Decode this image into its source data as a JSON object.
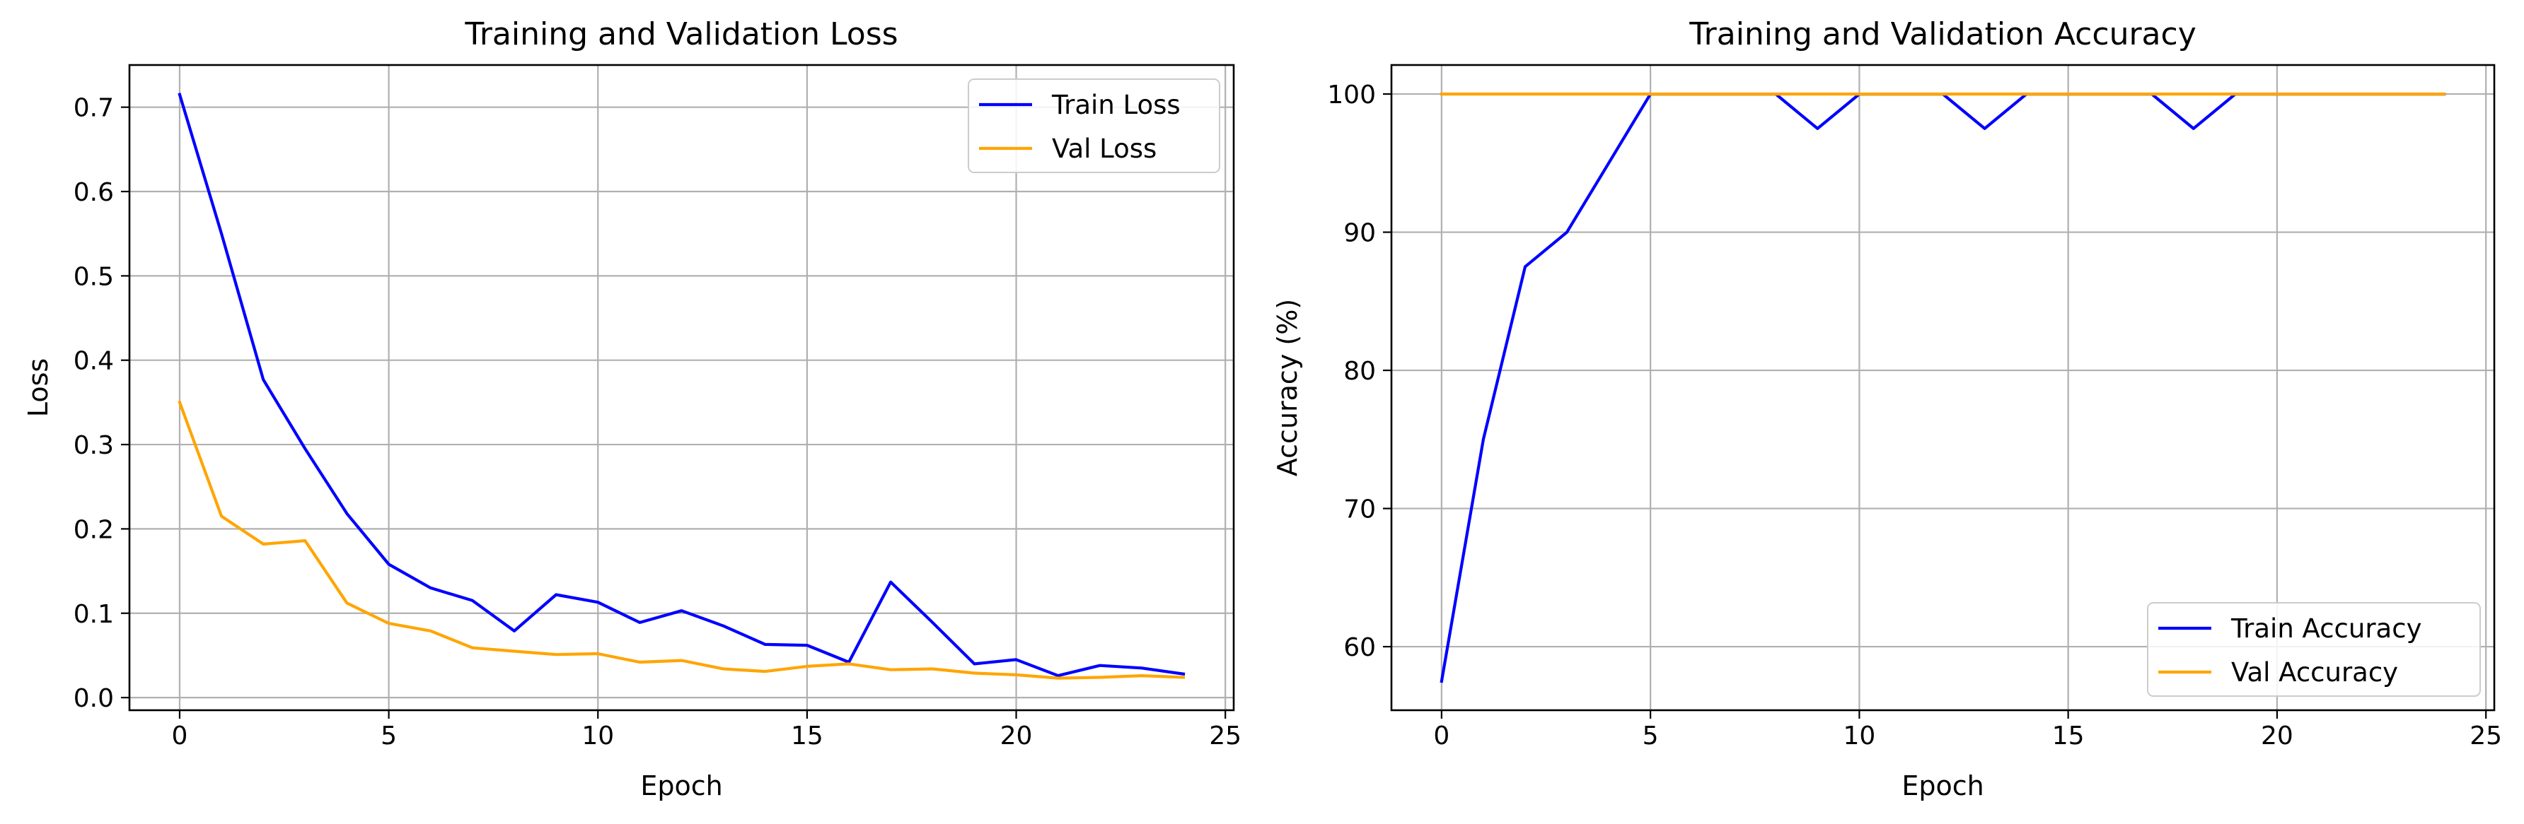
{
  "chart_data": [
    {
      "type": "line",
      "title": "Training and Validation Loss",
      "xlabel": "Epoch",
      "ylabel": "Loss",
      "xlim": [
        -1.2,
        25.2
      ],
      "ylim": [
        -0.015,
        0.75
      ],
      "xticks": [
        0,
        5,
        10,
        15,
        20,
        25
      ],
      "yticks": [
        0.0,
        0.1,
        0.2,
        0.3,
        0.4,
        0.5,
        0.6,
        0.7
      ],
      "ytick_labels": [
        "0.0",
        "0.1",
        "0.2",
        "0.3",
        "0.4",
        "0.5",
        "0.6",
        "0.7"
      ],
      "grid": true,
      "legend_position": "upper right",
      "x": [
        0,
        1,
        2,
        3,
        4,
        5,
        6,
        7,
        8,
        9,
        10,
        11,
        12,
        13,
        14,
        15,
        16,
        17,
        18,
        19,
        20,
        21,
        22,
        23,
        24
      ],
      "series": [
        {
          "name": "Train Loss",
          "color": "#0000ff",
          "values": [
            0.715,
            0.55,
            0.377,
            0.295,
            0.218,
            0.158,
            0.13,
            0.115,
            0.079,
            0.122,
            0.113,
            0.089,
            0.103,
            0.085,
            0.063,
            0.062,
            0.042,
            0.137,
            0.089,
            0.04,
            0.045,
            0.026,
            0.038,
            0.035,
            0.028
          ]
        },
        {
          "name": "Val Loss",
          "color": "#ffa500",
          "values": [
            0.35,
            0.215,
            0.182,
            0.186,
            0.112,
            0.088,
            0.079,
            0.059,
            0.055,
            0.051,
            0.052,
            0.042,
            0.044,
            0.034,
            0.031,
            0.037,
            0.04,
            0.033,
            0.034,
            0.029,
            0.027,
            0.023,
            0.024,
            0.026,
            0.024
          ]
        }
      ]
    },
    {
      "type": "line",
      "title": "Training and Validation Accuracy",
      "xlabel": "Epoch",
      "ylabel": "Accuracy (%)",
      "xlim": [
        -1.2,
        25.2
      ],
      "ylim": [
        55.4,
        102.1
      ],
      "xticks": [
        0,
        5,
        10,
        15,
        20,
        25
      ],
      "yticks": [
        60,
        70,
        80,
        90,
        100
      ],
      "ytick_labels": [
        "60",
        "70",
        "80",
        "90",
        "100"
      ],
      "grid": true,
      "legend_position": "lower right",
      "x": [
        0,
        1,
        2,
        3,
        4,
        5,
        6,
        7,
        8,
        9,
        10,
        11,
        12,
        13,
        14,
        15,
        16,
        17,
        18,
        19,
        20,
        21,
        22,
        23,
        24
      ],
      "series": [
        {
          "name": "Train Accuracy",
          "color": "#0000ff",
          "values": [
            57.5,
            75.0,
            87.5,
            90.0,
            95.0,
            100,
            100,
            100,
            100,
            97.5,
            100,
            100,
            100,
            97.5,
            100,
            100,
            100,
            100,
            97.5,
            100,
            100,
            100,
            100,
            100,
            100
          ]
        },
        {
          "name": "Val Accuracy",
          "color": "#ffa500",
          "values": [
            100,
            100,
            100,
            100,
            100,
            100,
            100,
            100,
            100,
            100,
            100,
            100,
            100,
            100,
            100,
            100,
            100,
            100,
            100,
            100,
            100,
            100,
            100,
            100,
            100
          ]
        }
      ]
    }
  ]
}
